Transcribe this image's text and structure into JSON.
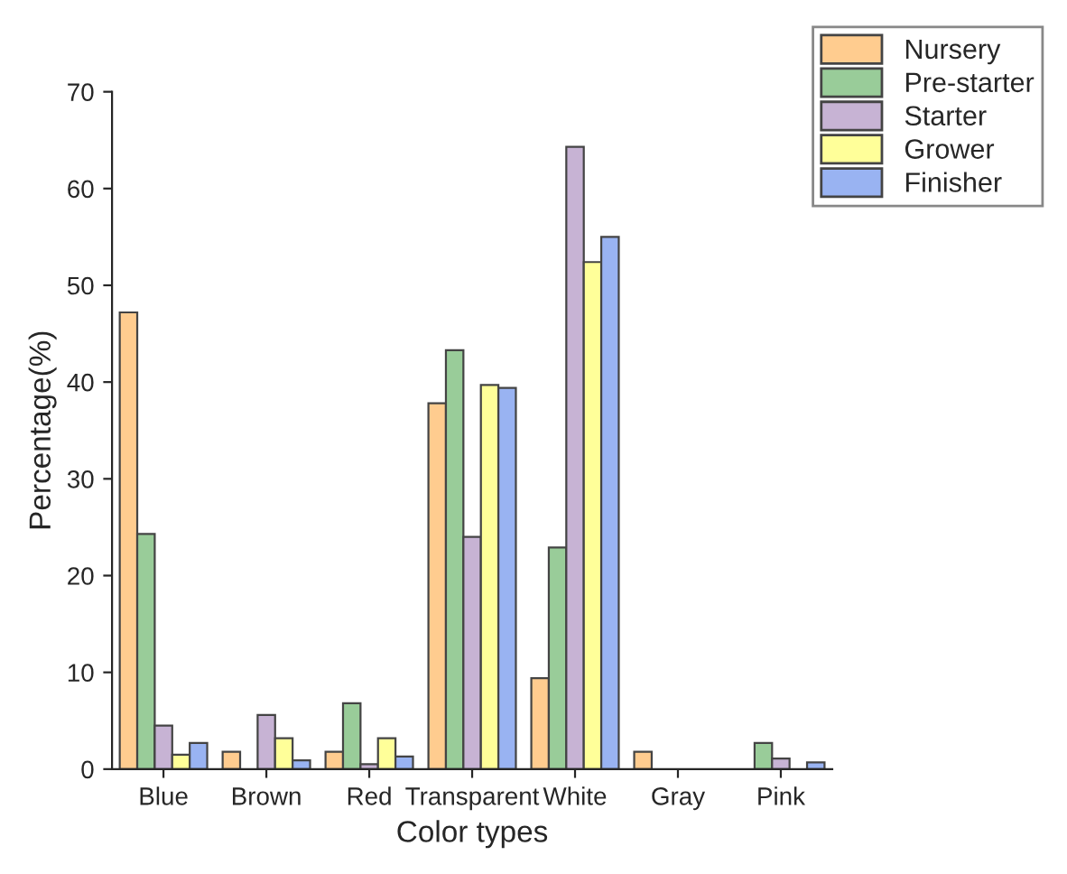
{
  "chart_data": {
    "type": "bar",
    "xlabel": "Color types",
    "ylabel": "Percentage(%)",
    "categories": [
      "Blue",
      "Brown",
      "Red",
      "Transparent",
      "White",
      "Gray",
      "Pink"
    ],
    "series": [
      {
        "name": "Nursery",
        "color": "#ffcc8f",
        "values": [
          47.2,
          1.8,
          1.8,
          37.8,
          9.4,
          1.8,
          null
        ]
      },
      {
        "name": "Pre-starter",
        "color": "#99cc99",
        "values": [
          24.3,
          null,
          6.8,
          43.3,
          22.9,
          null,
          2.7
        ]
      },
      {
        "name": "Starter",
        "color": "#c7b3d4",
        "values": [
          4.5,
          5.6,
          0.5,
          24.0,
          64.3,
          null,
          1.1
        ]
      },
      {
        "name": "Grower",
        "color": "#ffff99",
        "values": [
          1.5,
          3.2,
          3.2,
          39.7,
          52.4,
          null,
          null
        ]
      },
      {
        "name": "Finisher",
        "color": "#99b3f2",
        "values": [
          2.7,
          0.9,
          1.3,
          39.4,
          55.0,
          null,
          0.7
        ]
      }
    ],
    "ylim": [
      0,
      70
    ],
    "yticks": [
      0,
      10,
      20,
      30,
      40,
      50,
      60,
      70
    ],
    "grid": false,
    "legend": "top right"
  }
}
